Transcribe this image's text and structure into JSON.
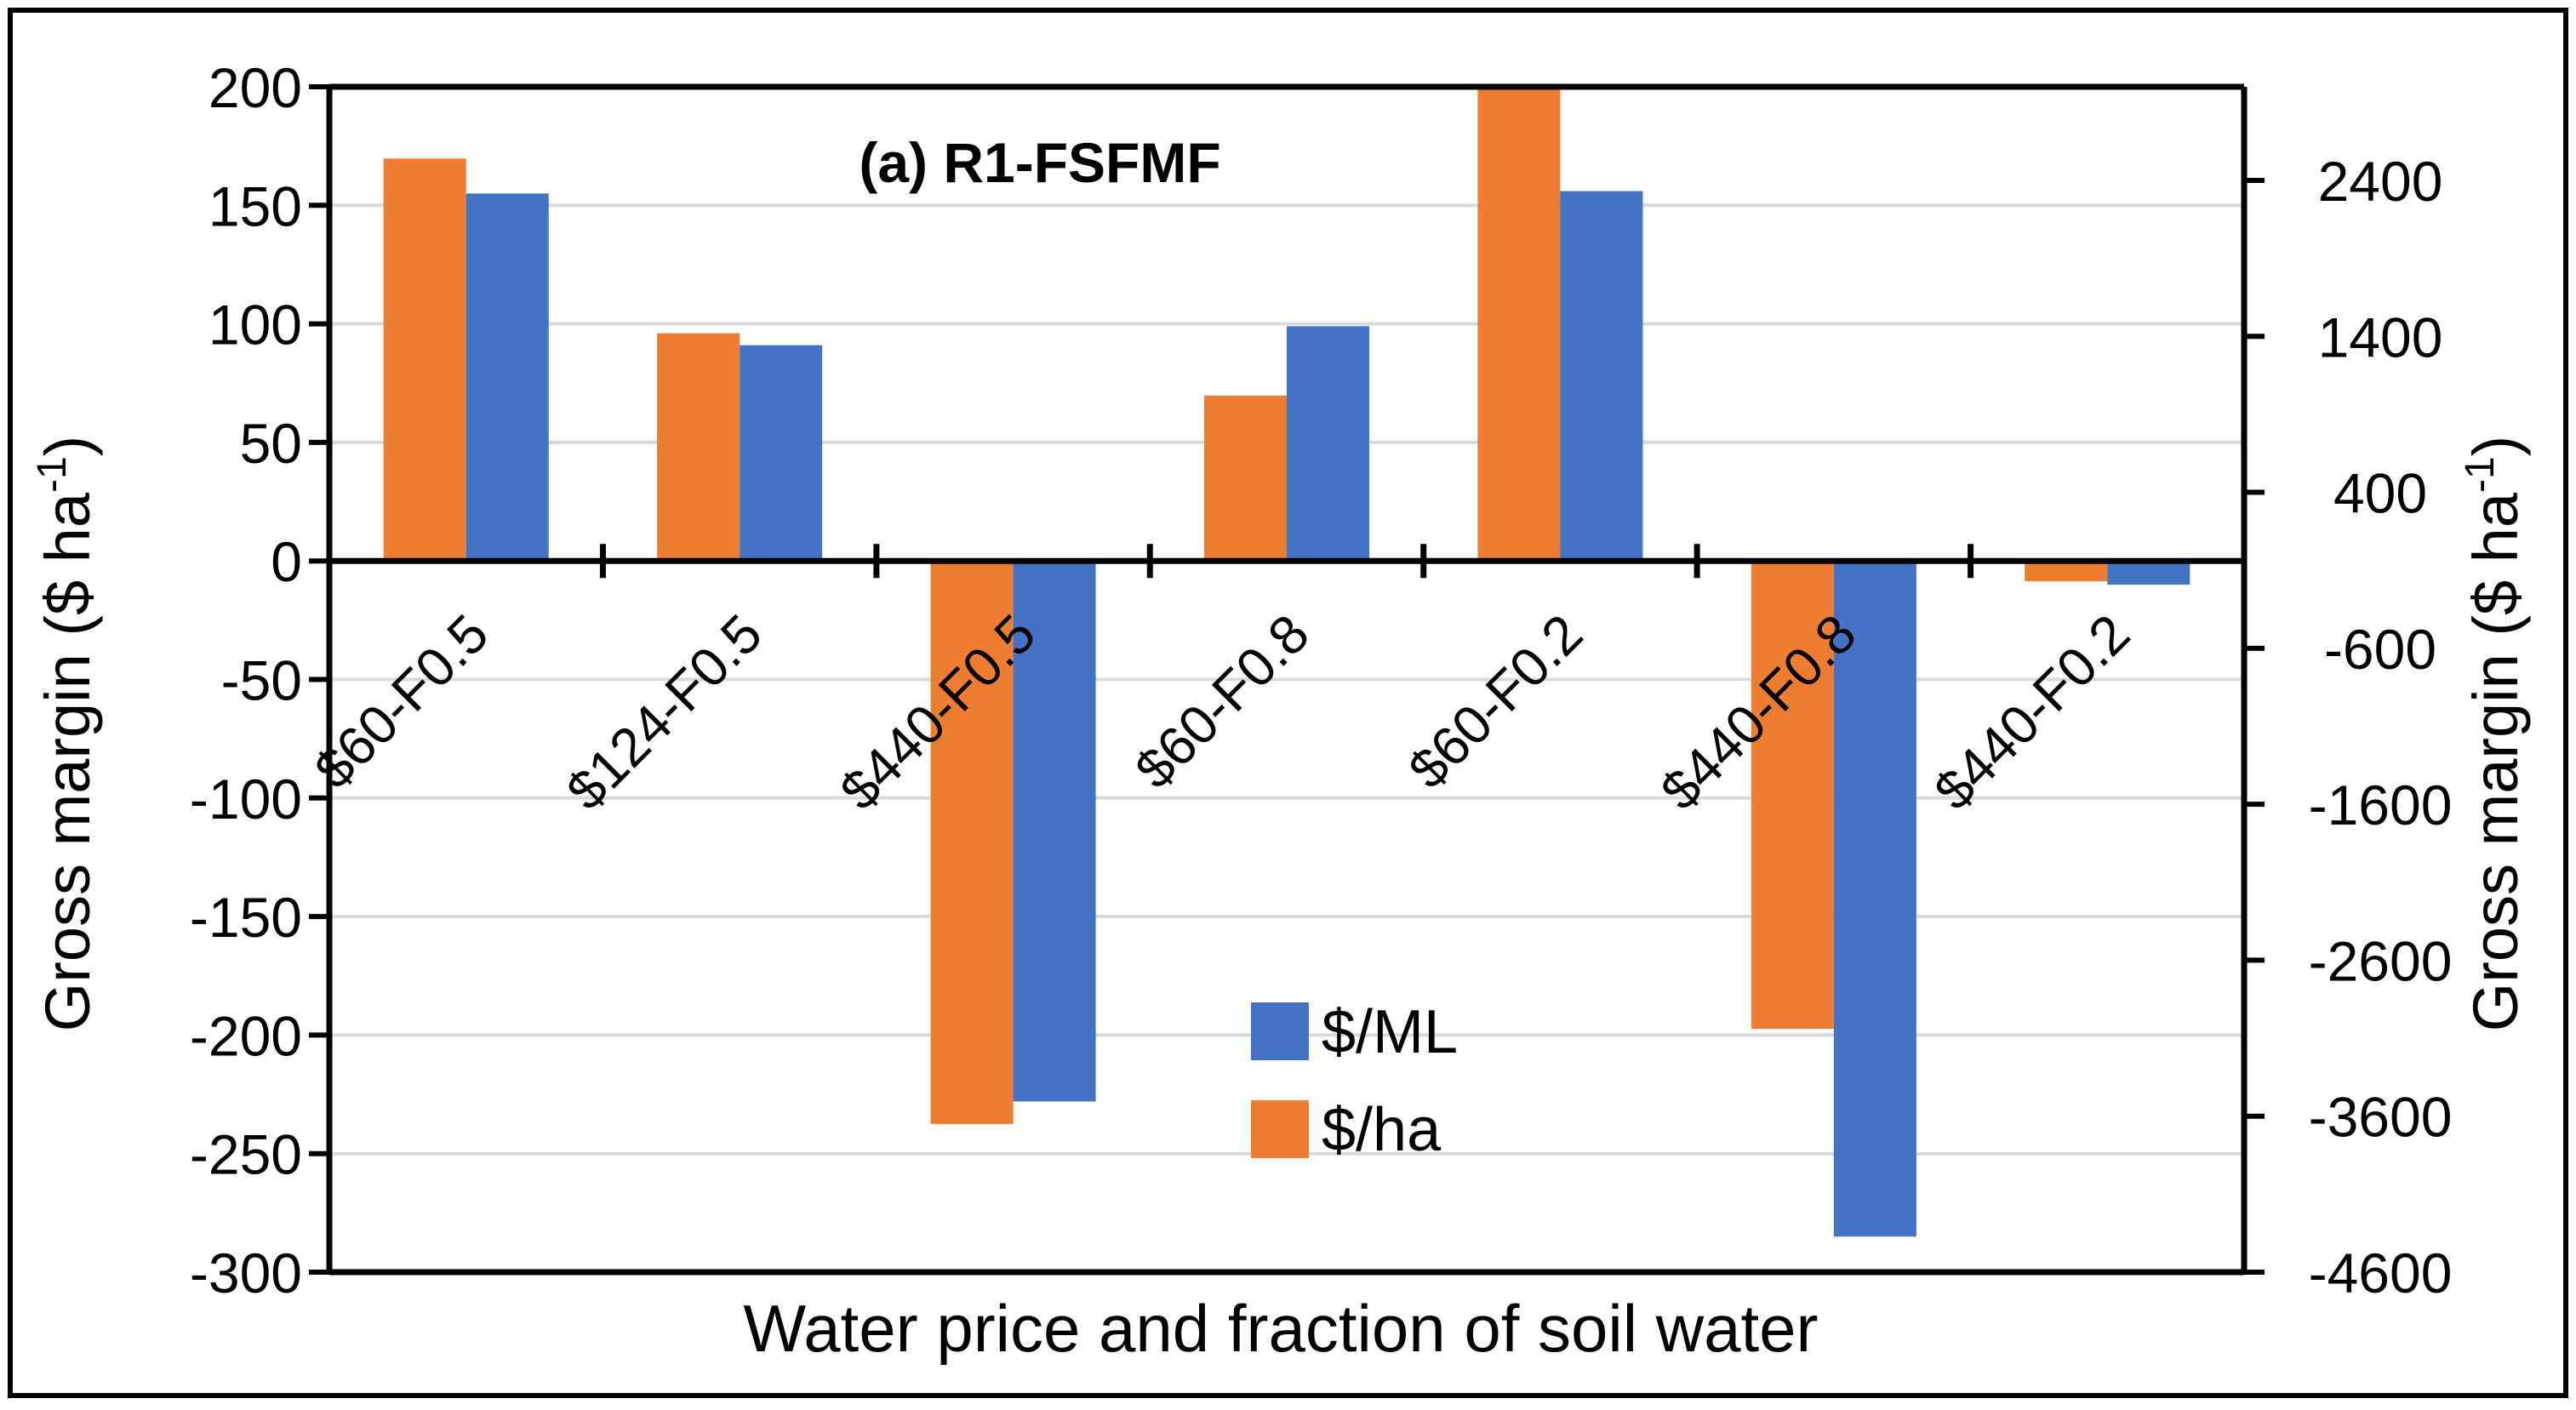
{
  "chart_data": {
    "type": "bar",
    "title": "(a) R1-FSFMF",
    "xlabel": "Water price and fraction of soil water",
    "ylabel_left": "Gross margin ($ ha",
    "ylabel_right": "Gross margin ($ ha",
    "ylabel_superscript": "-1",
    "ylabel_close": ")",
    "categories": [
      "$60-F0.5",
      "$124-F0.5",
      "$440-F0.5",
      "$60-F0.8",
      "$60-F0.2",
      "$440-F0.8",
      "$440-F0.2"
    ],
    "left_axis": {
      "ylim": [
        -300,
        200
      ],
      "ticks": [
        200,
        150,
        100,
        50,
        0,
        -50,
        -100,
        -150,
        -200,
        -250,
        -300
      ],
      "tick_labels": [
        "200",
        "150",
        "100",
        "50",
        "0",
        "-50",
        "-100",
        "-150",
        "-200",
        "-250",
        "-300"
      ]
    },
    "right_axis": {
      "ylim": [
        -4600,
        3000
      ],
      "ticks": [
        2400,
        1400,
        400,
        -600,
        -1600,
        -2600,
        -3600,
        -4600
      ],
      "tick_labels": [
        "2400",
        "1400",
        "400",
        "-600",
        "-1600",
        "-2600",
        "-3600",
        "-4600"
      ]
    },
    "series": [
      {
        "name": "$/ha",
        "axis": "right",
        "color": "#ED7D31",
        "values": [
          2540,
          1420,
          -3650,
          1020,
          2985,
          -3040,
          -170
        ]
      },
      {
        "name": "$/ML",
        "axis": "left",
        "color": "#4472C4",
        "values": [
          155,
          91,
          -228,
          99,
          156,
          -285,
          -10
        ]
      }
    ],
    "legend": [
      {
        "label": "$/ML",
        "color": "#4472C4"
      },
      {
        "label": "$/ha",
        "color": "#ED7D31"
      }
    ],
    "legend_position": "bottom-center",
    "grid": true
  }
}
